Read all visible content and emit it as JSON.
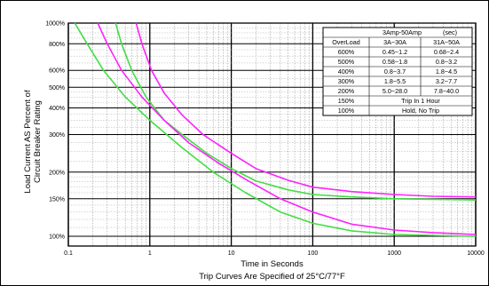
{
  "chart_data": {
    "type": "line",
    "title": "",
    "xlabel": "Time in Seconds",
    "footnote": "Trip Curves Are Specified of 25°C/77°F",
    "ylabel_line1": "Load Current AS Percent of",
    "ylabel_line2": "Circuit Breaker Rating",
    "x_scale": "log",
    "xlim": [
      0.1,
      10000
    ],
    "x_ticks": [
      0.1,
      1,
      10,
      100,
      1000,
      10000
    ],
    "x_tick_labels": [
      "0.1",
      "1",
      "10",
      "100",
      "1000",
      "10000"
    ],
    "y_scale": "log",
    "ylim": [
      90,
      1000
    ],
    "y_ticks": [
      100,
      150,
      200,
      300,
      400,
      500,
      600,
      800,
      1000
    ],
    "y_tick_labels": [
      "100%",
      "150%",
      "200%",
      "300%",
      "400%",
      "500%",
      "600%",
      "800%",
      "1000%"
    ],
    "grid": true,
    "colors": {
      "green": "#44dd44",
      "magenta": "#ff22ff",
      "background": "#ffffff",
      "grid": "#000000"
    },
    "series": [
      {
        "color": "#44dd44",
        "points": [
          [
            0.38,
            1000
          ],
          [
            0.45,
            800
          ],
          [
            0.6,
            600
          ],
          [
            0.9,
            450
          ],
          [
            1.5,
            350
          ],
          [
            2.5,
            300
          ],
          [
            5,
            245
          ],
          [
            10,
            208
          ],
          [
            20,
            182
          ],
          [
            50,
            165
          ],
          [
            100,
            157
          ],
          [
            300,
            153
          ],
          [
            1000,
            150
          ],
          [
            3000,
            149
          ],
          [
            10000,
            148
          ]
        ]
      },
      {
        "color": "#ff22ff",
        "points": [
          [
            0.68,
            1000
          ],
          [
            0.8,
            800
          ],
          [
            1.05,
            600
          ],
          [
            1.5,
            470
          ],
          [
            2.5,
            370
          ],
          [
            4.5,
            300
          ],
          [
            10,
            245
          ],
          [
            20,
            208
          ],
          [
            50,
            183
          ],
          [
            100,
            170
          ],
          [
            300,
            162
          ],
          [
            1000,
            157
          ],
          [
            3000,
            154
          ],
          [
            10000,
            153
          ]
        ]
      },
      {
        "color": "#ff22ff",
        "points": [
          [
            0.23,
            1000
          ],
          [
            0.3,
            800
          ],
          [
            0.45,
            600
          ],
          [
            0.8,
            450
          ],
          [
            1.5,
            350
          ],
          [
            3,
            275
          ],
          [
            7,
            220
          ],
          [
            15,
            185
          ],
          [
            40,
            150
          ],
          [
            100,
            130
          ],
          [
            300,
            114
          ],
          [
            1000,
            107
          ],
          [
            3000,
            104
          ],
          [
            10000,
            102
          ]
        ]
      },
      {
        "color": "#44dd44",
        "points": [
          [
            0.12,
            1000
          ],
          [
            0.17,
            800
          ],
          [
            0.27,
            600
          ],
          [
            0.5,
            450
          ],
          [
            1,
            350
          ],
          [
            2.5,
            260
          ],
          [
            6,
            200
          ],
          [
            15,
            160
          ],
          [
            40,
            130
          ],
          [
            100,
            115
          ],
          [
            300,
            106
          ],
          [
            1000,
            102
          ],
          [
            3000,
            101
          ],
          [
            10000,
            100
          ]
        ]
      }
    ],
    "legend_table": {
      "header": "3Amp-50Amp",
      "header_unit": "(sec)",
      "columns": [
        "OverLoad",
        "3A~30A",
        "31A~50A"
      ],
      "rows": [
        [
          "600%",
          "0.45~1.2",
          "0.68~2.4"
        ],
        [
          "500%",
          "0.58~1.8",
          "0.8~3.2"
        ],
        [
          "400%",
          "0.8~3.7",
          "1.8~4.5"
        ],
        [
          "300%",
          "1.8~5.5",
          "3.2~7.7"
        ],
        [
          "200%",
          "5.0~28.0",
          "7.8~40.0"
        ],
        [
          "150%",
          "Trip In 1 Hour"
        ],
        [
          "100%",
          "Hold, No Trip"
        ]
      ]
    }
  }
}
